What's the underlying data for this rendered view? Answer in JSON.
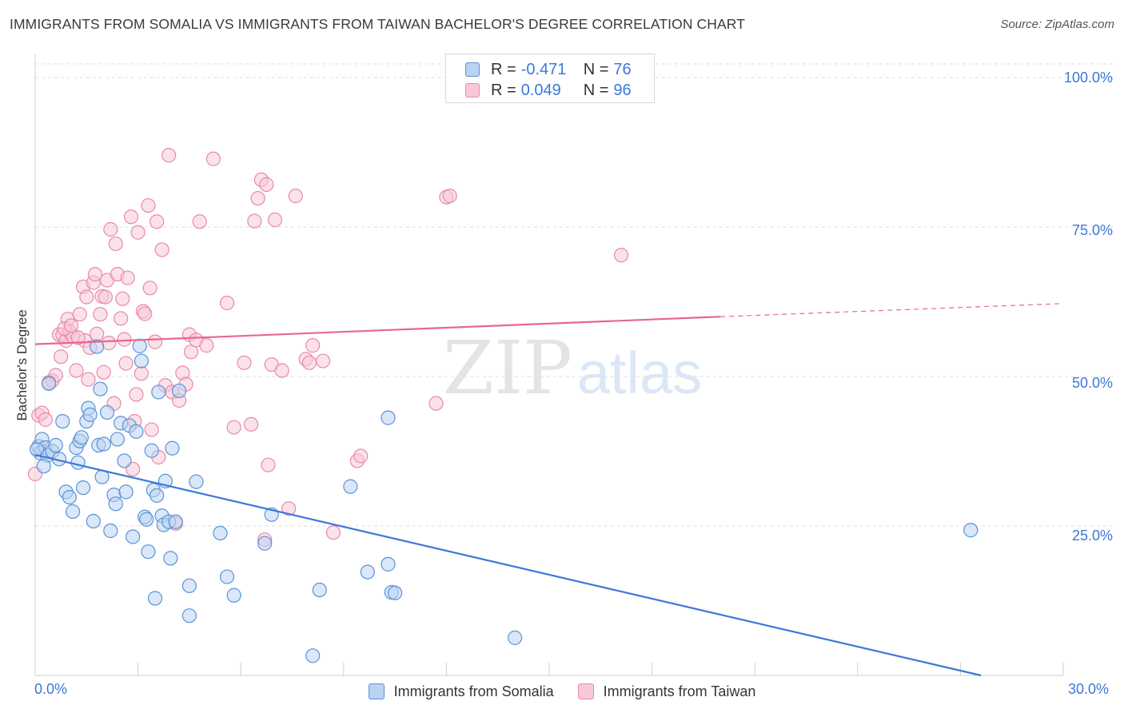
{
  "title": "IMMIGRANTS FROM SOMALIA VS IMMIGRANTS FROM TAIWAN BACHELOR'S DEGREE CORRELATION CHART",
  "source": "Source: ZipAtlas.com",
  "watermark": {
    "zip": "ZIP",
    "atlas": "atlas"
  },
  "colors": {
    "blue_fill": "#b9d3f2",
    "blue_stroke": "#5b92d6",
    "blue_line": "#3b78d8",
    "pink_fill": "#f8c8d8",
    "pink_stroke": "#e88aa8",
    "pink_line": "#e8678f",
    "tick_text": "#3b78d8"
  },
  "legend_top": {
    "rows": [
      {
        "r_label": "R =",
        "r_value": "-0.471",
        "n_label": "N =",
        "n_value": "76"
      },
      {
        "r_label": "R =",
        "r_value": "0.049",
        "n_label": "N =",
        "n_value": "96"
      }
    ]
  },
  "legend_bottom": [
    "Immigrants from Somalia",
    "Immigrants from Taiwan"
  ],
  "chart_data": {
    "type": "scatter",
    "title": "IMMIGRANTS FROM SOMALIA VS IMMIGRANTS FROM TAIWAN BACHELOR'S DEGREE CORRELATION CHART",
    "xlabel": "",
    "ylabel": "Bachelor's Degree",
    "xlim": [
      0,
      30
    ],
    "ylim": [
      0,
      100
    ],
    "x_ticks": [
      "0.0%",
      "30.0%"
    ],
    "y_ticks": [
      "25.0%",
      "50.0%",
      "75.0%",
      "100.0%"
    ],
    "grid": "horizontal dashed",
    "legend_position": "bottom",
    "series": [
      {
        "name": "Immigrants from Somalia",
        "trend": {
          "x": [
            0,
            27.6
          ],
          "y": [
            36.9,
            0
          ]
        },
        "points": [
          [
            0.1,
            38.3
          ],
          [
            0.15,
            37.2
          ],
          [
            0.2,
            39.5
          ],
          [
            0.3,
            38.1
          ],
          [
            0.35,
            36.8
          ],
          [
            0.4,
            48.8
          ],
          [
            0.5,
            37.5
          ],
          [
            0.6,
            38.5
          ],
          [
            0.7,
            36.2
          ],
          [
            0.8,
            42.5
          ],
          [
            0.9,
            30.7
          ],
          [
            1.0,
            29.8
          ],
          [
            1.1,
            27.4
          ],
          [
            1.2,
            38.1
          ],
          [
            1.25,
            35.6
          ],
          [
            1.3,
            39.2
          ],
          [
            1.35,
            39.8
          ],
          [
            1.4,
            31.4
          ],
          [
            1.5,
            42.5
          ],
          [
            1.55,
            44.7
          ],
          [
            1.6,
            43.6
          ],
          [
            1.7,
            25.8
          ],
          [
            1.8,
            55.0
          ],
          [
            1.85,
            38.5
          ],
          [
            1.9,
            47.9
          ],
          [
            1.95,
            33.2
          ],
          [
            2.0,
            38.7
          ],
          [
            2.1,
            44.0
          ],
          [
            2.2,
            24.2
          ],
          [
            2.3,
            30.2
          ],
          [
            2.35,
            28.7
          ],
          [
            2.4,
            39.5
          ],
          [
            2.5,
            42.2
          ],
          [
            2.6,
            35.9
          ],
          [
            2.65,
            30.7
          ],
          [
            2.75,
            41.8
          ],
          [
            2.85,
            23.2
          ],
          [
            2.95,
            40.8
          ],
          [
            3.05,
            55.1
          ],
          [
            3.1,
            52.6
          ],
          [
            3.2,
            26.5
          ],
          [
            3.25,
            26.1
          ],
          [
            3.3,
            20.7
          ],
          [
            3.4,
            37.6
          ],
          [
            3.45,
            31.0
          ],
          [
            3.5,
            12.9
          ],
          [
            3.55,
            30.1
          ],
          [
            3.6,
            47.4
          ],
          [
            3.7,
            26.7
          ],
          [
            3.75,
            25.2
          ],
          [
            3.8,
            32.5
          ],
          [
            3.9,
            25.7
          ],
          [
            3.95,
            19.6
          ],
          [
            4.0,
            38.0
          ],
          [
            4.1,
            25.7
          ],
          [
            4.2,
            47.6
          ],
          [
            4.5,
            15.0
          ],
          [
            4.5,
            10.0
          ],
          [
            4.7,
            32.4
          ],
          [
            5.4,
            23.8
          ],
          [
            5.6,
            16.5
          ],
          [
            5.8,
            13.4
          ],
          [
            6.7,
            22.1
          ],
          [
            6.9,
            26.9
          ],
          [
            8.1,
            3.3
          ],
          [
            8.3,
            14.3
          ],
          [
            9.2,
            31.6
          ],
          [
            9.7,
            17.3
          ],
          [
            10.3,
            43.1
          ],
          [
            10.3,
            18.6
          ],
          [
            10.4,
            13.9
          ],
          [
            10.5,
            13.8
          ],
          [
            14.0,
            6.3
          ],
          [
            27.3,
            24.3
          ],
          [
            0.05,
            37.8
          ],
          [
            0.25,
            35.0
          ]
        ]
      },
      {
        "name": "Immigrants from Taiwan",
        "trend": {
          "x": [
            0,
            20
          ],
          "y": [
            55.4,
            60.0
          ]
        },
        "trend_dashed": {
          "x": [
            20,
            30
          ],
          "y": [
            60.0,
            62.2
          ]
        },
        "points": [
          [
            0.0,
            33.7
          ],
          [
            0.1,
            43.5
          ],
          [
            0.2,
            43.9
          ],
          [
            0.3,
            42.8
          ],
          [
            0.5,
            49.3
          ],
          [
            0.6,
            50.2
          ],
          [
            0.7,
            57.0
          ],
          [
            0.75,
            53.3
          ],
          [
            0.8,
            57.0
          ],
          [
            0.9,
            56.0
          ],
          [
            0.95,
            59.6
          ],
          [
            1.0,
            57.5
          ],
          [
            1.1,
            56.7
          ],
          [
            1.2,
            51.0
          ],
          [
            1.3,
            60.4
          ],
          [
            1.4,
            65.0
          ],
          [
            1.45,
            56.0
          ],
          [
            1.5,
            63.3
          ],
          [
            1.55,
            49.5
          ],
          [
            1.6,
            54.8
          ],
          [
            1.7,
            65.7
          ],
          [
            1.75,
            67.1
          ],
          [
            1.8,
            57.1
          ],
          [
            1.9,
            60.4
          ],
          [
            1.95,
            63.4
          ],
          [
            2.0,
            50.7
          ],
          [
            2.05,
            63.3
          ],
          [
            2.1,
            66.1
          ],
          [
            2.15,
            55.6
          ],
          [
            2.2,
            74.6
          ],
          [
            2.3,
            45.5
          ],
          [
            2.35,
            72.2
          ],
          [
            2.4,
            67.1
          ],
          [
            2.5,
            59.7
          ],
          [
            2.55,
            63.0
          ],
          [
            2.6,
            56.2
          ],
          [
            2.65,
            52.2
          ],
          [
            2.7,
            66.5
          ],
          [
            2.8,
            76.7
          ],
          [
            2.85,
            34.5
          ],
          [
            2.9,
            42.5
          ],
          [
            2.95,
            47.0
          ],
          [
            3.0,
            74.1
          ],
          [
            3.1,
            50.5
          ],
          [
            3.15,
            60.9
          ],
          [
            3.2,
            60.5
          ],
          [
            3.3,
            78.6
          ],
          [
            3.35,
            64.8
          ],
          [
            3.4,
            41.1
          ],
          [
            3.5,
            55.8
          ],
          [
            3.55,
            75.9
          ],
          [
            3.6,
            36.5
          ],
          [
            3.7,
            71.2
          ],
          [
            3.8,
            48.5
          ],
          [
            3.9,
            87.0
          ],
          [
            4.0,
            47.4
          ],
          [
            4.1,
            25.4
          ],
          [
            4.2,
            46.0
          ],
          [
            4.3,
            50.6
          ],
          [
            4.4,
            48.7
          ],
          [
            4.5,
            57.0
          ],
          [
            4.55,
            54.1
          ],
          [
            4.7,
            56.1
          ],
          [
            4.8,
            75.9
          ],
          [
            5.0,
            55.2
          ],
          [
            5.2,
            86.4
          ],
          [
            5.6,
            62.3
          ],
          [
            5.8,
            41.5
          ],
          [
            6.1,
            52.3
          ],
          [
            6.3,
            42.0
          ],
          [
            6.4,
            76.0
          ],
          [
            6.5,
            79.8
          ],
          [
            6.6,
            82.9
          ],
          [
            6.75,
            82.1
          ],
          [
            6.8,
            35.2
          ],
          [
            6.9,
            52.0
          ],
          [
            7.0,
            76.2
          ],
          [
            7.2,
            51.0
          ],
          [
            7.4,
            27.9
          ],
          [
            7.6,
            80.2
          ],
          [
            7.9,
            52.9
          ],
          [
            8.0,
            52.3
          ],
          [
            8.1,
            55.2
          ],
          [
            8.4,
            52.6
          ],
          [
            8.7,
            23.9
          ],
          [
            9.4,
            35.9
          ],
          [
            9.5,
            36.7
          ],
          [
            11.7,
            45.5
          ],
          [
            12.0,
            80.0
          ],
          [
            12.1,
            80.2
          ],
          [
            17.1,
            70.3
          ],
          [
            0.4,
            49.0
          ],
          [
            0.85,
            58.0
          ],
          [
            1.25,
            56.5
          ],
          [
            6.7,
            22.7
          ],
          [
            1.05,
            58.5
          ]
        ]
      }
    ]
  }
}
